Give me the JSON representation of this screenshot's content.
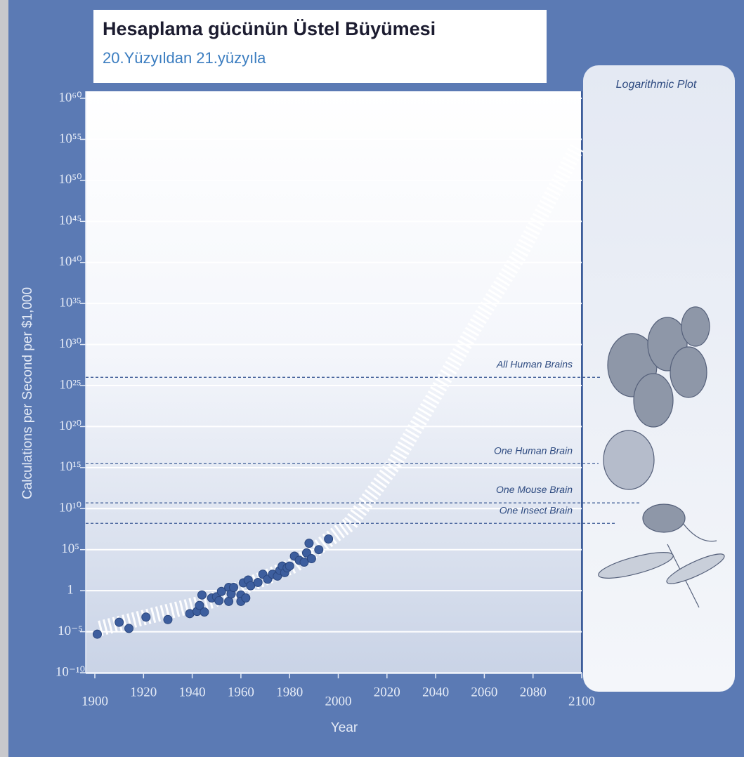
{
  "chart_data": {
    "type": "scatter",
    "title": "Hesaplama gücünün Üstel Büyümesi",
    "subtitle": "20.Yüzyıldan 21.yüzyıla",
    "x_label": "Year",
    "y_label": "Calculations per Second per $1,000",
    "panel_label": "Logarithmic Plot",
    "color": "#3d5e9e",
    "x": [
      1901,
      1910,
      1914,
      1921,
      1930,
      1939,
      1942,
      1943,
      1944,
      1945,
      1948,
      1950,
      1951,
      1952,
      1955,
      1955,
      1956,
      1957,
      1960,
      1960,
      1961,
      1962,
      1963,
      1964,
      1967,
      1969,
      1971,
      1973,
      1975,
      1976,
      1977,
      1978,
      1979,
      1980,
      1982,
      1984,
      1986,
      1987,
      1988,
      1989,
      1992,
      1996
    ],
    "values": [
      5e-06,
      0.00014,
      2.5e-05,
      0.0006,
      0.0003,
      0.0016,
      0.003,
      0.016,
      0.3,
      0.0025,
      0.13,
      0.18,
      0.06,
      0.8,
      2.5,
      0.05,
      0.4,
      2.5,
      0.3,
      0.05,
      9,
      0.13,
      20,
      4,
      10,
      100,
      25,
      100,
      60,
      300,
      1000,
      160,
      600,
      1000,
      16000,
      5000,
      3000,
      40000,
      600000,
      8000,
      100000,
      2000000
    ],
    "trend": {
      "x": [
        1902,
        1948,
        1982,
        2005,
        2023,
        2040,
        2057,
        2075,
        2092,
        2098
      ],
      "values": [
        2.5e-05,
        0.06,
        1300,
        160000000.0,
        3000000000000000.0,
        1e+24,
        4e+32,
        1.6e+41,
        4e+50,
        1e+54
      ]
    },
    "reference_lines": [
      {
        "label": "All Human Brains",
        "value": 1e+26
      },
      {
        "label": "One Human Brain",
        "value": 3000000000000000.0
      },
      {
        "label": "One Mouse Brain",
        "value": 50000000000.0
      },
      {
        "label": "One Insect Brain",
        "value": 160000000.0
      }
    ],
    "xlim": [
      1900,
      2100
    ],
    "xticks": [
      1900,
      1920,
      1940,
      1960,
      1980,
      2000,
      2020,
      2040,
      2060,
      2080,
      2100
    ],
    "ylim": [
      1e-10,
      1e+60
    ],
    "yticks": [
      {
        "value": 1e-10,
        "label": "10⁻¹⁰"
      },
      {
        "value": 1e-05,
        "label": "10⁻⁵"
      },
      1,
      {
        "value": 100000.0,
        "label": "10⁵"
      },
      {
        "value": 10000000000.0,
        "label": "10¹⁰"
      },
      {
        "value": 1000000000000000.0,
        "label": "10¹⁵"
      },
      {
        "value": 1e+20,
        "label": "10²⁰"
      },
      {
        "value": 1e+25,
        "label": "10²⁵"
      },
      {
        "value": 1e+30,
        "label": "10³⁰"
      },
      {
        "value": 1e+35,
        "label": "10³⁵"
      },
      {
        "value": 1e+40,
        "label": "10⁴⁰"
      },
      {
        "value": 1e+45,
        "label": "10⁴⁵"
      },
      {
        "value": 1e+50,
        "label": "10⁵⁰"
      },
      {
        "value": 1e+55,
        "label": "10⁵⁵"
      },
      {
        "value": 1e+60,
        "label": "10⁶⁰"
      }
    ],
    "log_y": true,
    "grid": true
  }
}
